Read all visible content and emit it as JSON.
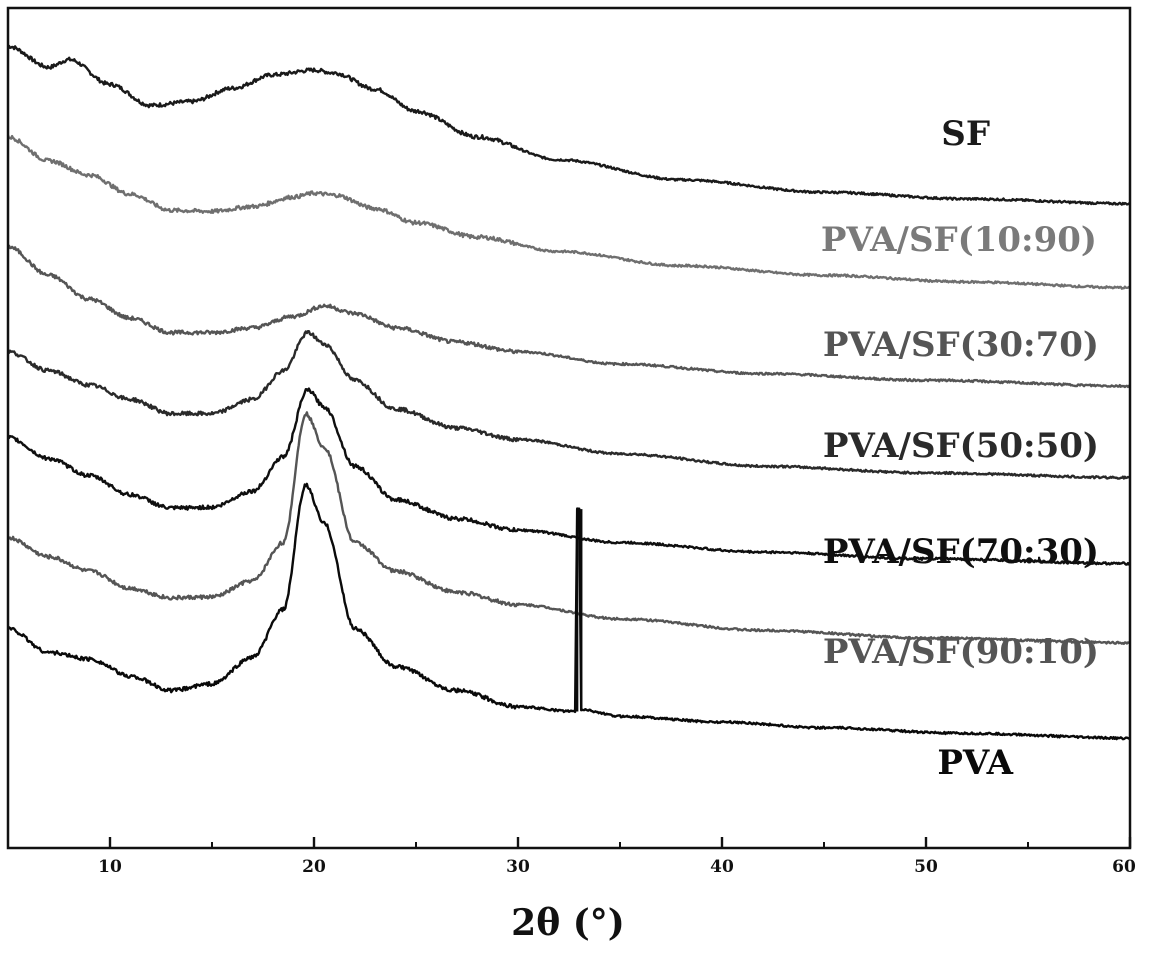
{
  "chart_data": {
    "type": "line",
    "xlabel": "2θ (°)",
    "ylabel": "",
    "xlim": [
      5,
      60
    ],
    "x_ticks": [
      10,
      20,
      30,
      40,
      50,
      60
    ],
    "x_tick_labels": [
      "10",
      "20",
      "30",
      "40",
      "50",
      "60"
    ],
    "y_ticks_shown": false,
    "grid": false,
    "legend": "inline labels at right end of each curve",
    "series": [
      {
        "name": "SF",
        "color": "#1a1a1a",
        "x": [
          5,
          7,
          8,
          10,
          12,
          14,
          16,
          18,
          20,
          21,
          23,
          25,
          28,
          32,
          38,
          45,
          52,
          60
        ],
        "y": [
          840,
          818,
          826,
          800,
          778,
          782,
          796,
          810,
          815,
          812,
          795,
          772,
          745,
          721,
          700,
          687,
          680,
          675
        ]
      },
      {
        "name": "PVA/SF(10:90)",
        "color": "#6f6f6f",
        "x": [
          5,
          7,
          9,
          11,
          13,
          15,
          17,
          19,
          20,
          21,
          23,
          25,
          28,
          32,
          38,
          45,
          52,
          60
        ],
        "y": [
          745,
          720,
          705,
          685,
          668,
          667,
          672,
          682,
          686,
          684,
          670,
          655,
          640,
          625,
          610,
          600,
          593,
          587
        ]
      },
      {
        "name": "PVA/SF(30:70)",
        "color": "#555555",
        "x": [
          5,
          7,
          9,
          11,
          13,
          15,
          17,
          19,
          20.5,
          22,
          24,
          27,
          30,
          35,
          42,
          50,
          60
        ],
        "y": [
          630,
          600,
          575,
          555,
          540,
          540,
          545,
          557,
          568,
          560,
          545,
          530,
          520,
          507,
          497,
          490,
          484
        ]
      },
      {
        "name": "PVA/SF(50:50)",
        "color": "#2a2a2a",
        "x": [
          5,
          7,
          9,
          11,
          13,
          15,
          17,
          18.5,
          19.7,
          20.5,
          22,
          24,
          27,
          30,
          35,
          42,
          50,
          60
        ],
        "y": [
          520,
          500,
          485,
          470,
          455,
          455,
          470,
          500,
          540,
          528,
          490,
          460,
          440,
          428,
          413,
          400,
          393,
          388
        ]
      },
      {
        "name": "PVA/SF(70:30)",
        "color": "#0f0f0f",
        "x": [
          5,
          7,
          9,
          11,
          13,
          15,
          17,
          18.5,
          19.7,
          20.5,
          22,
          24,
          27,
          30,
          35,
          42,
          50,
          60
        ],
        "y": [
          430,
          408,
          390,
          370,
          356,
          357,
          374,
          410,
          480,
          462,
          400,
          365,
          345,
          333,
          320,
          310,
          303,
          298
        ]
      },
      {
        "name": "PVA/SF(90:10)",
        "color": "#555555",
        "x": [
          5,
          7,
          9,
          11,
          13,
          15,
          17,
          18.5,
          19.6,
          20.5,
          22,
          24,
          27,
          30,
          35,
          42,
          50,
          60
        ],
        "y": [
          325,
          305,
          290,
          272,
          262,
          263,
          280,
          320,
          455,
          420,
          320,
          290,
          268,
          255,
          240,
          228,
          220,
          215
        ]
      },
      {
        "name": "PVA",
        "color": "#0a0a0a",
        "x": [
          5,
          7,
          9,
          11,
          13,
          15,
          17,
          18.5,
          19.6,
          20.5,
          22,
          24,
          27,
          30,
          32.8,
          32.9,
          33.0,
          33.1,
          35,
          40,
          45,
          52,
          60
        ],
        "y": [
          230,
          205,
          198,
          180,
          165,
          172,
          200,
          250,
          380,
          340,
          230,
          190,
          165,
          148,
          143,
          355,
          355,
          145,
          138,
          132,
          126,
          120,
          115
        ]
      }
    ]
  }
}
